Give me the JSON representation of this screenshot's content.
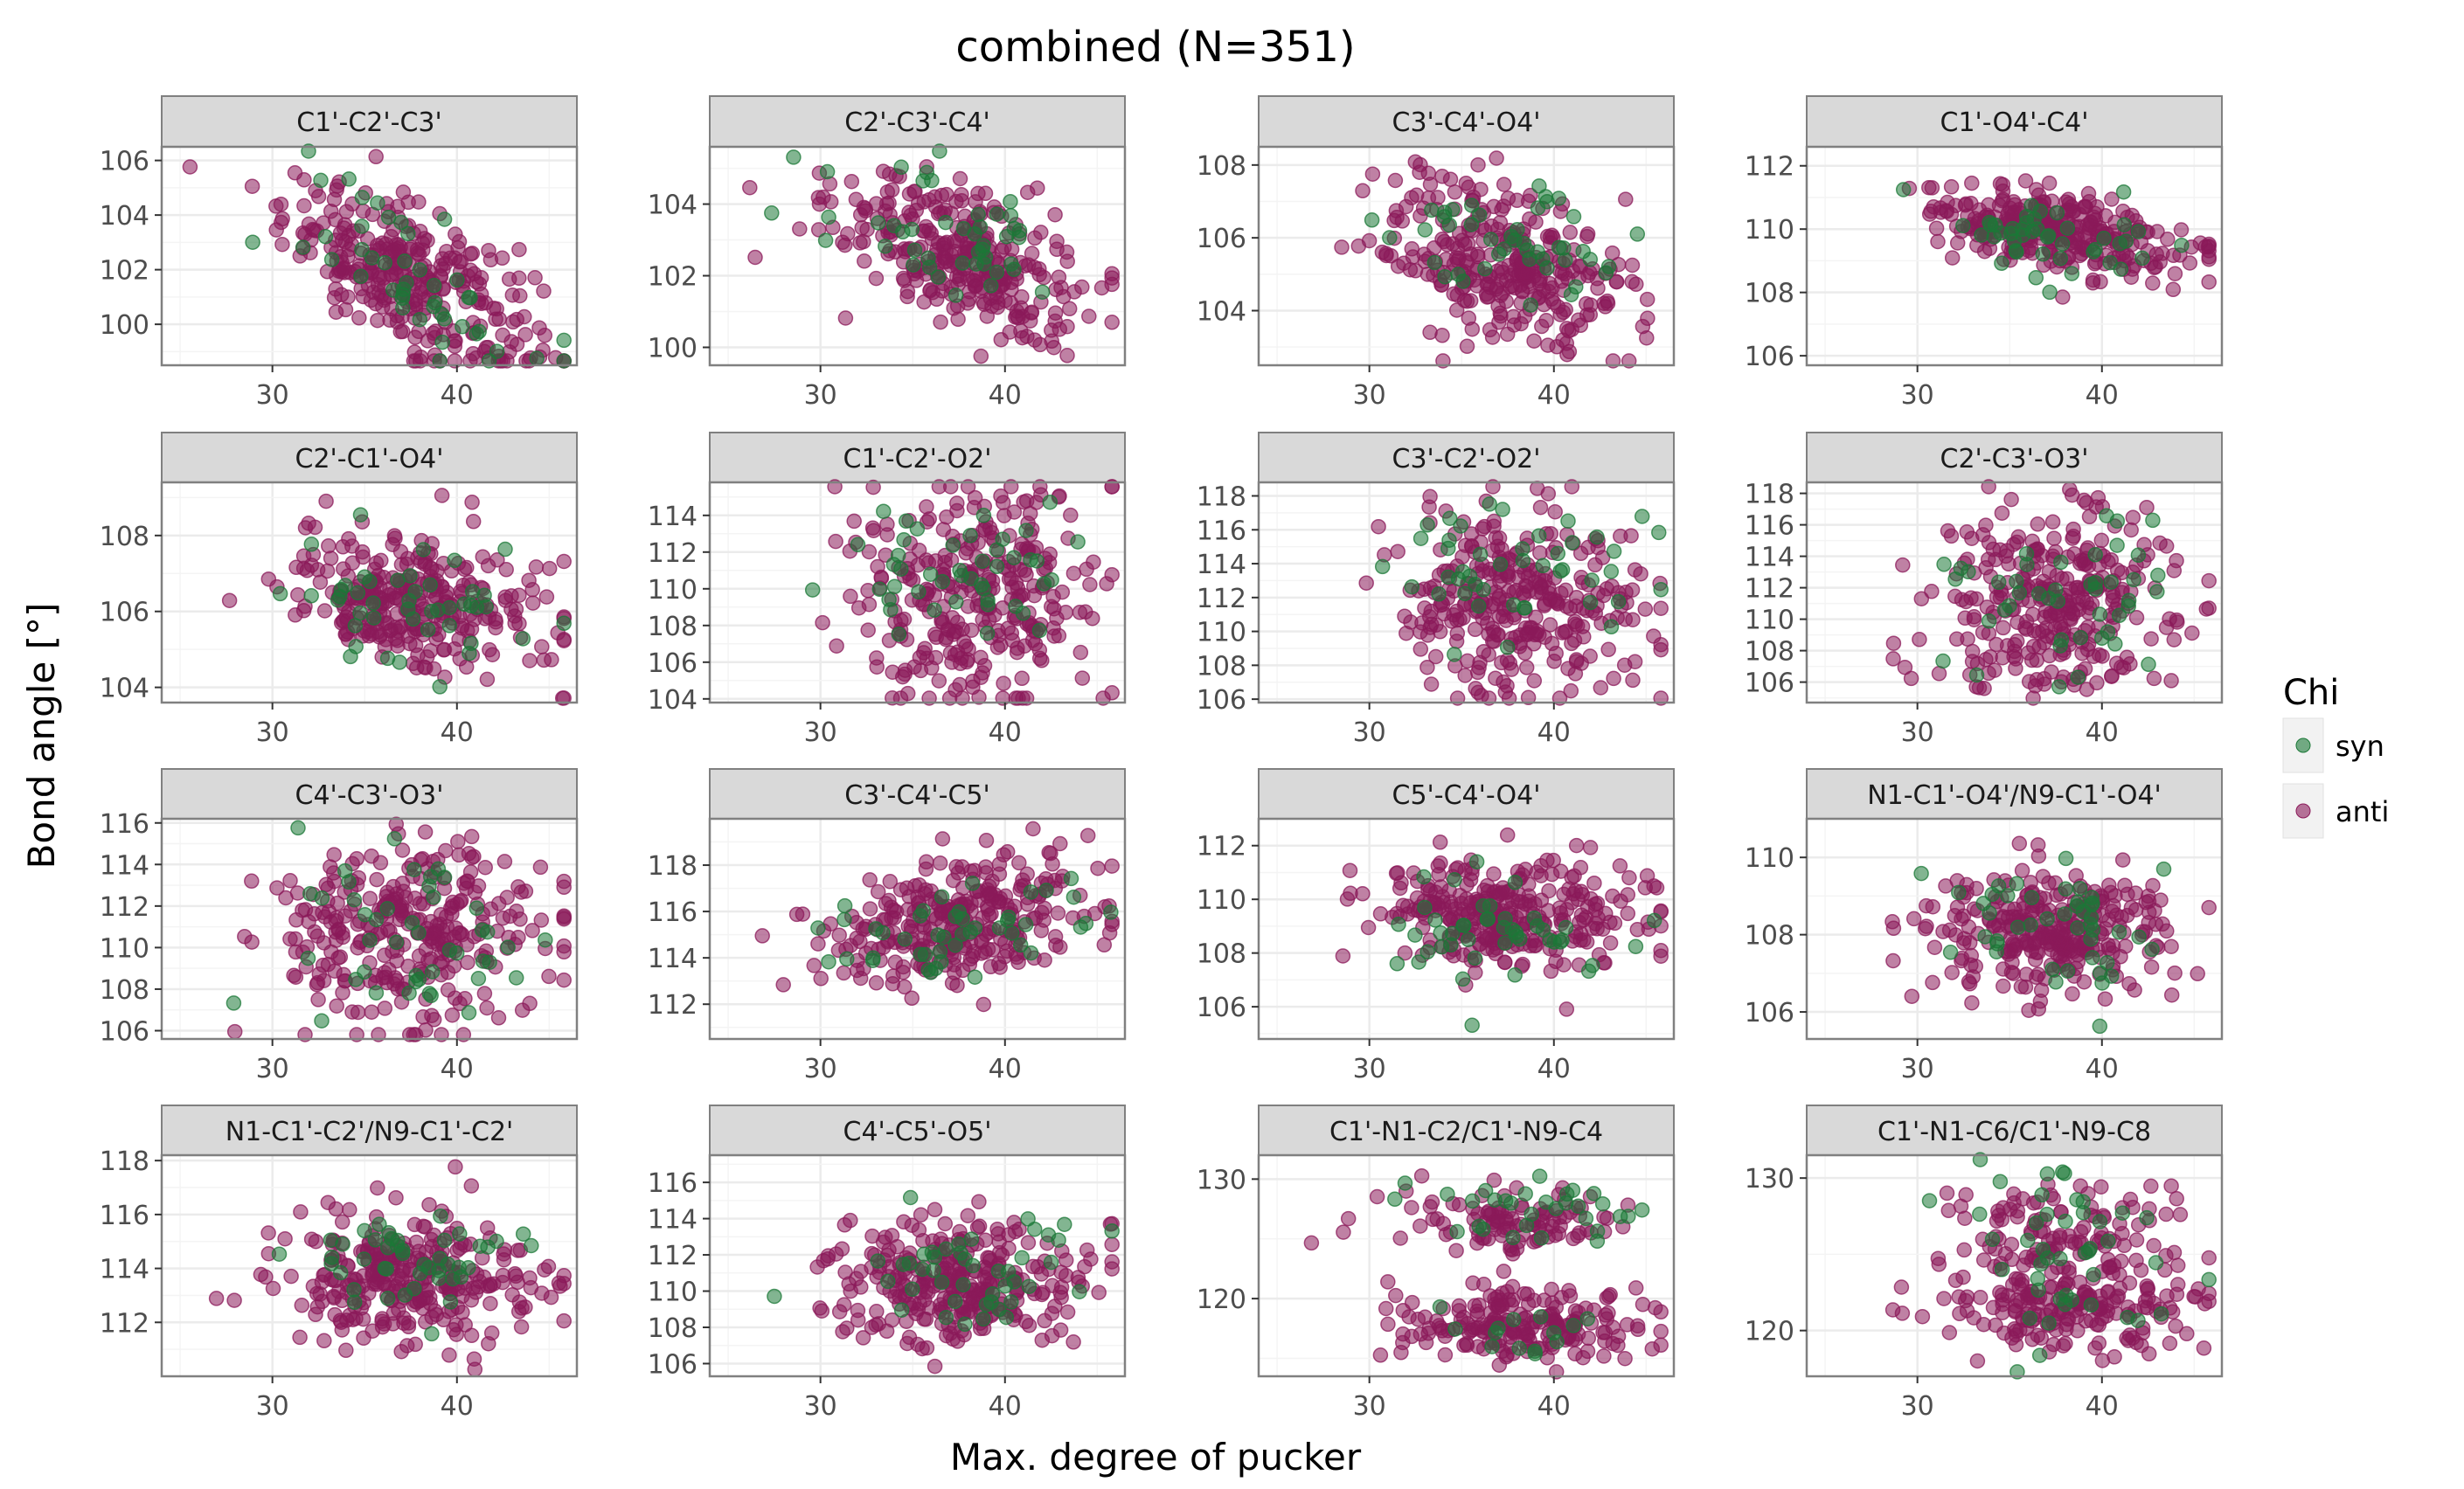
{
  "title": "combined (N=351)",
  "xlabel": "Max. degree of pucker",
  "ylabel": "Bond angle [°]",
  "legend": {
    "title": "Chi",
    "items": [
      {
        "label": "syn",
        "color": "#1b7837"
      },
      {
        "label": "anti",
        "color": "#8b1a5a"
      }
    ]
  },
  "chart_data": {
    "type": "scatter",
    "n_points": 351,
    "x_range": [
      24,
      46.5
    ],
    "x_ticks": [
      30,
      40
    ],
    "grid": true,
    "legend_position": "right",
    "series_colors": {
      "syn": "#1b7837",
      "anti": "#8b1a5a"
    },
    "panels": [
      {
        "name": "C1'-C2'-C3'",
        "ylim": [
          98.5,
          106.5
        ],
        "y_ticks": [
          100,
          102,
          104,
          106
        ],
        "y_ticklabels": [
          "100",
          "102",
          "104",
          "106"
        ],
        "syn": {
          "center": [
            38,
            101.8
          ],
          "spread": [
            3.5,
            1.2
          ],
          "trend": -0.3
        },
        "anti": {
          "center": [
            37.5,
            101.7
          ],
          "spread": [
            3.8,
            1.3
          ],
          "trend": -0.3
        }
      },
      {
        "name": "C2'-C3'-C4'",
        "ylim": [
          99.5,
          105.6
        ],
        "y_ticks": [
          100,
          102,
          104
        ],
        "y_ticklabels": [
          "100",
          "102",
          "104"
        ],
        "syn": {
          "center": [
            37,
            103.2
          ],
          "spread": [
            3.5,
            0.9
          ],
          "trend": -0.15
        },
        "anti": {
          "center": [
            37.5,
            102.6
          ],
          "spread": [
            3.8,
            1.0
          ],
          "trend": -0.2
        }
      },
      {
        "name": "C3'-C4'-O4'",
        "ylim": [
          102.5,
          108.5
        ],
        "y_ticks": [
          104,
          106,
          108
        ],
        "y_ticklabels": [
          "104",
          "106",
          "108"
        ],
        "syn": {
          "center": [
            37.5,
            105.9
          ],
          "spread": [
            3.5,
            0.8
          ],
          "trend": -0.05
        },
        "anti": {
          "center": [
            37.5,
            105.2
          ],
          "spread": [
            3.8,
            1.1
          ],
          "trend": -0.15
        }
      },
      {
        "name": "C1'-O4'-C4'",
        "ylim": [
          105.7,
          112.6
        ],
        "y_ticks": [
          106,
          108,
          110,
          112
        ],
        "y_ticklabels": [
          "106",
          "108",
          "110",
          "112"
        ],
        "syn": {
          "center": [
            37,
            109.6
          ],
          "spread": [
            3.5,
            0.8
          ],
          "trend": -0.05
        },
        "anti": {
          "center": [
            37.5,
            109.9
          ],
          "spread": [
            3.8,
            0.6
          ],
          "trend": -0.1
        }
      },
      {
        "name": "C2'-C1'-O4'",
        "ylim": [
          103.6,
          109.4
        ],
        "y_ticks": [
          104,
          106,
          108
        ],
        "y_ticklabels": [
          "104",
          "106",
          "108"
        ],
        "syn": {
          "center": [
            37.5,
            106.2
          ],
          "spread": [
            3.5,
            0.9
          ],
          "trend": -0.05
        },
        "anti": {
          "center": [
            37.5,
            106.3
          ],
          "spread": [
            3.8,
            0.9
          ],
          "trend": -0.08
        }
      },
      {
        "name": "C1'-C2'-O2'",
        "ylim": [
          103.8,
          115.8
        ],
        "y_ticks": [
          104,
          106,
          108,
          110,
          112,
          114
        ],
        "y_ticklabels": [
          "104",
          "106",
          "108",
          "110",
          "112",
          "114"
        ],
        "syn": {
          "center": [
            38,
            111.5
          ],
          "spread": [
            3.5,
            2.2
          ],
          "trend": 0.05
        },
        "anti": {
          "center": [
            38,
            110.0
          ],
          "spread": [
            3.6,
            3.0
          ],
          "trend": 0
        }
      },
      {
        "name": "C3'-C2'-O2'",
        "ylim": [
          105.8,
          118.8
        ],
        "y_ticks": [
          106,
          108,
          110,
          112,
          114,
          116,
          118
        ],
        "y_ticklabels": [
          "106",
          "108",
          "110",
          "112",
          "114",
          "116",
          "118"
        ],
        "syn": {
          "center": [
            38,
            113.5
          ],
          "spread": [
            3.5,
            2.0
          ],
          "trend": 0
        },
        "anti": {
          "center": [
            38,
            111.8
          ],
          "spread": [
            3.6,
            2.6
          ],
          "trend": -0.1
        }
      },
      {
        "name": "C2'-C3'-O3'",
        "ylim": [
          104.7,
          118.7
        ],
        "y_ticks": [
          106,
          108,
          110,
          112,
          114,
          116,
          118
        ],
        "y_ticklabels": [
          "106",
          "108",
          "110",
          "112",
          "114",
          "116",
          "118"
        ],
        "syn": {
          "center": [
            38,
            111.2
          ],
          "spread": [
            3.5,
            2.5
          ],
          "trend": 0
        },
        "anti": {
          "center": [
            37.5,
            111.0
          ],
          "spread": [
            3.6,
            3.0
          ],
          "trend": 0
        }
      },
      {
        "name": "C4'-C3'-O3'",
        "ylim": [
          105.6,
          116.2
        ],
        "y_ticks": [
          106,
          108,
          110,
          112,
          114,
          116
        ],
        "y_ticklabels": [
          "106",
          "108",
          "110",
          "112",
          "114",
          "116"
        ],
        "syn": {
          "center": [
            37.5,
            110.5
          ],
          "spread": [
            3.5,
            2.5
          ],
          "trend": 0
        },
        "anti": {
          "center": [
            37.5,
            110.8
          ],
          "spread": [
            3.8,
            2.4
          ],
          "trend": 0
        }
      },
      {
        "name": "C3'-C4'-C5'",
        "ylim": [
          110.5,
          120
        ],
        "y_ticks": [
          112,
          114,
          116,
          118
        ],
        "y_ticklabels": [
          "112",
          "114",
          "116",
          "118"
        ],
        "syn": {
          "center": [
            37.5,
            115.0
          ],
          "spread": [
            3.5,
            1.2
          ],
          "trend": 0.1
        },
        "anti": {
          "center": [
            37.5,
            115.4
          ],
          "spread": [
            3.8,
            1.3
          ],
          "trend": 0.12
        }
      },
      {
        "name": "C5'-C4'-O4'",
        "ylim": [
          104.8,
          113
        ],
        "y_ticks": [
          106,
          108,
          110,
          112
        ],
        "y_ticklabels": [
          "106",
          "108",
          "110",
          "112"
        ],
        "syn": {
          "center": [
            37.5,
            108.6
          ],
          "spread": [
            3.5,
            1.2
          ],
          "trend": 0
        },
        "anti": {
          "center": [
            37.5,
            109.4
          ],
          "spread": [
            3.8,
            1.0
          ],
          "trend": 0
        }
      },
      {
        "name": "N1-C1'-O4'/N9-C1'-O4'",
        "ylim": [
          105.3,
          111
        ],
        "y_ticks": [
          106,
          108,
          110
        ],
        "y_ticklabels": [
          "106",
          "108",
          "110"
        ],
        "syn": {
          "center": [
            37.5,
            108.3
          ],
          "spread": [
            3.5,
            1.0
          ],
          "trend": 0
        },
        "anti": {
          "center": [
            37.5,
            108.1
          ],
          "spread": [
            3.8,
            0.8
          ],
          "trend": 0
        }
      },
      {
        "name": "N1-C1'-C2'/N9-C1'-C2'",
        "ylim": [
          110,
          118.2
        ],
        "y_ticks": [
          112,
          114,
          116,
          118
        ],
        "y_ticklabels": [
          "112",
          "114",
          "116",
          "118"
        ],
        "syn": {
          "center": [
            37.5,
            114.2
          ],
          "spread": [
            3.5,
            1.1
          ],
          "trend": 0
        },
        "anti": {
          "center": [
            37.5,
            113.8
          ],
          "spread": [
            3.8,
            1.2
          ],
          "trend": 0
        }
      },
      {
        "name": "C4'-C5'-O5'",
        "ylim": [
          105.3,
          117.5
        ],
        "y_ticks": [
          106,
          108,
          110,
          112,
          114,
          116
        ],
        "y_ticklabels": [
          "106",
          "108",
          "110",
          "112",
          "114",
          "116"
        ],
        "syn": {
          "center": [
            37.5,
            111.5
          ],
          "spread": [
            3.5,
            1.8
          ],
          "trend": 0
        },
        "anti": {
          "center": [
            37.5,
            110.5
          ],
          "spread": [
            3.8,
            1.7
          ],
          "trend": 0
        }
      },
      {
        "name": "C1'-N1-C2/C1'-N9-C4",
        "ylim": [
          113.5,
          132
        ],
        "y_ticks": [
          120,
          130
        ],
        "y_ticklabels": [
          "120",
          "130"
        ],
        "syn": {
          "center": [
            38,
            127.5
          ],
          "spread": [
            3.5,
            1.8
          ],
          "trend": 0,
          "bimodal": [
            127.5,
            118
          ]
        },
        "anti": {
          "center": [
            38,
            118
          ],
          "spread": [
            3.8,
            1.5
          ],
          "trend": 0,
          "bimodal": [
            118,
            126.5
          ]
        }
      },
      {
        "name": "C1'-N1-C6/C1'-N9-C8",
        "ylim": [
          117,
          131.5
        ],
        "y_ticks": [
          120,
          130
        ],
        "y_ticklabels": [
          "120",
          "130"
        ],
        "syn": {
          "center": [
            37.5,
            126.5
          ],
          "spread": [
            3.5,
            2.0
          ],
          "trend": 0,
          "bimodal": [
            127,
            121
          ]
        },
        "anti": {
          "center": [
            38,
            122
          ],
          "spread": [
            3.8,
            1.6
          ],
          "trend": 0,
          "bimodal": [
            121.5,
            126.5
          ]
        }
      }
    ]
  }
}
